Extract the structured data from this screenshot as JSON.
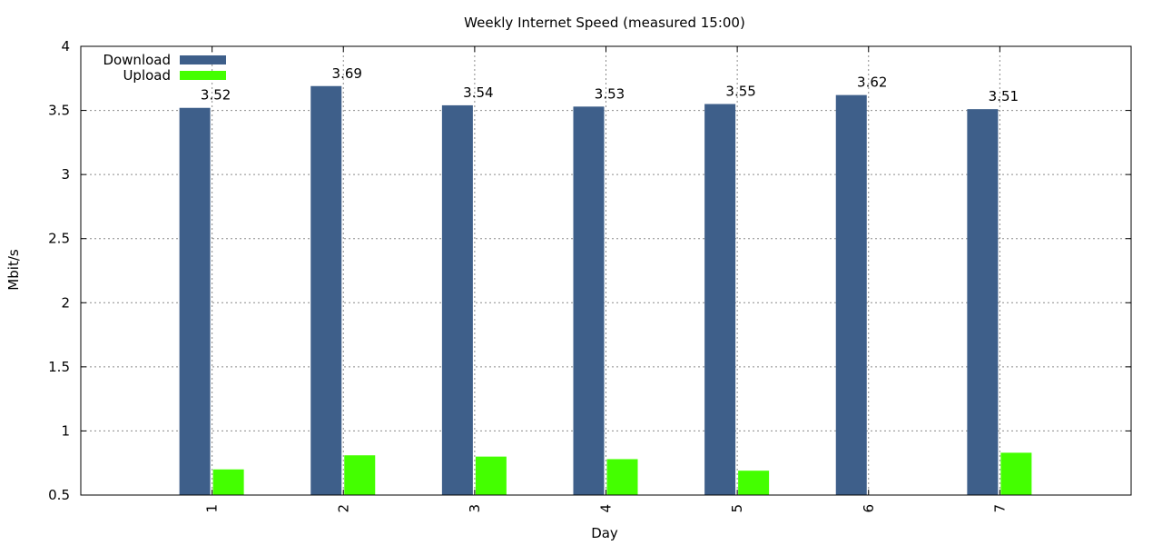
{
  "chart_data": {
    "type": "bar",
    "title": "Weekly Internet Speed (measured 15:00)",
    "xlabel": "Day",
    "ylabel": "Mbit/s",
    "categories": [
      "1",
      "2",
      "3",
      "4",
      "5",
      "6",
      "7"
    ],
    "ylim": [
      0.5,
      4
    ],
    "yticks": [
      "0.5",
      "1",
      "1.5",
      "2",
      "2.5",
      "3",
      "3.5",
      "4"
    ],
    "grid": true,
    "legend_position": "top-left",
    "series": [
      {
        "name": "Download",
        "color": "#3e5f8a",
        "values": [
          3.52,
          3.69,
          3.54,
          3.53,
          3.55,
          3.62,
          3.51
        ],
        "labels": [
          "3.52",
          "3.69",
          "3.54",
          "3.53",
          "3.55",
          "3.62",
          "3.51"
        ]
      },
      {
        "name": "Upload",
        "color": "#44ff00",
        "values": [
          0.7,
          0.81,
          0.8,
          0.78,
          0.69,
          null,
          0.83
        ]
      }
    ]
  }
}
